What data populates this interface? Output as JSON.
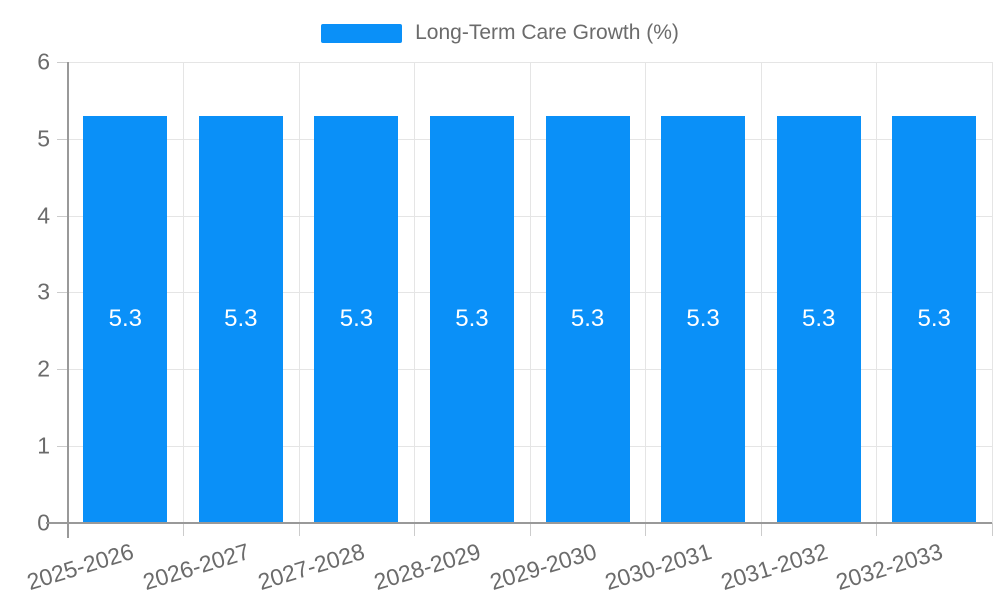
{
  "legend": {
    "label": "Long-Term Care Growth (%)",
    "swatch_color": "#0a90f8"
  },
  "chart_data": {
    "type": "bar",
    "title": "Long-Term Care Growth (%)",
    "categories": [
      "2025-2026",
      "2026-2027",
      "2027-2028",
      "2028-2029",
      "2029-2030",
      "2030-2031",
      "2031-2032",
      "2032-2033"
    ],
    "values": [
      5.3,
      5.3,
      5.3,
      5.3,
      5.3,
      5.3,
      5.3,
      5.3
    ],
    "bar_labels": [
      "5.3",
      "5.3",
      "5.3",
      "5.3",
      "5.3",
      "5.3",
      "5.3",
      "5.3"
    ],
    "xlabel": "",
    "ylabel": "",
    "ylim": [
      0,
      6
    ],
    "yticks": [
      0,
      1,
      2,
      3,
      4,
      5,
      6
    ],
    "grid": true,
    "legend_position": "top-center",
    "colors": {
      "bar": "#0a90f8",
      "value_label_text": "#ffffff",
      "axis_text": "#6b6b6b",
      "grid_line": "#e5e5e5",
      "axis_line": "#999999",
      "tick_line": "#cccccc",
      "background": "#ffffff"
    },
    "x_label_rotation_deg": -17
  }
}
